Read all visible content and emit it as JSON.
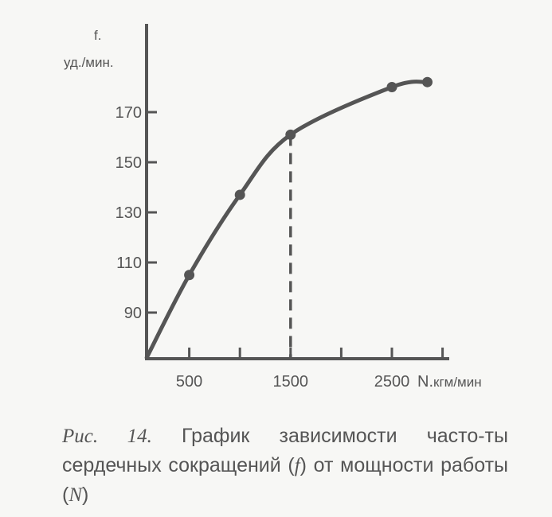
{
  "chart_data": {
    "type": "line",
    "x": [
      80,
      500,
      1000,
      1500,
      2500,
      2850
    ],
    "values": [
      72,
      105,
      137,
      161,
      180,
      182
    ],
    "marked_points": [
      500,
      1000,
      1500,
      2500,
      2850
    ],
    "reference_line": {
      "x": 1500,
      "style": "dashed"
    },
    "xlabel": "N.кгм/мин",
    "ylabel_line1": "f.",
    "ylabel_line2": "уд./мин.",
    "x_ticks": [
      500,
      1000,
      1500,
      2000,
      2500,
      3000
    ],
    "x_tick_labels": [
      "500",
      "1500",
      "2500"
    ],
    "x_tick_labels_at": [
      500,
      1500,
      2500
    ],
    "y_ticks": [
      90,
      110,
      130,
      150,
      170
    ],
    "y_tick_labels": [
      "90",
      "110",
      "130",
      "150",
      "170"
    ],
    "xlim": [
      80,
      3050
    ],
    "ylim": [
      72,
      205
    ],
    "grid": false,
    "line_color": "#555555"
  },
  "caption": {
    "figure_label": "Рис. 14.",
    "text_part1": " График зависимости часто-ты сердечных сокращений (",
    "f_symbol": "f",
    "text_part2": ") от мощности работы (",
    "n_symbol": "N",
    "text_part3": ")"
  }
}
